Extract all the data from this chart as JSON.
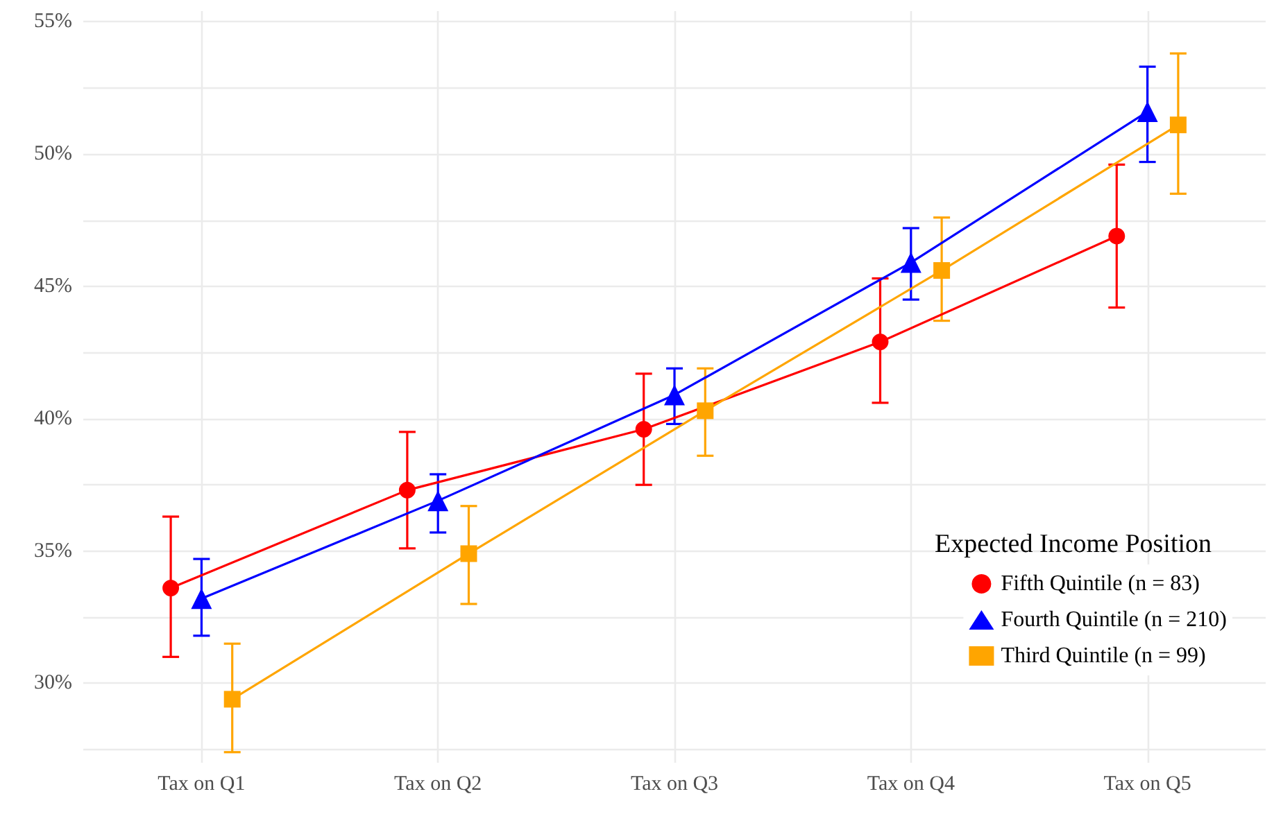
{
  "chart_data": {
    "type": "line",
    "categories": [
      "Tax on Q1",
      "Tax on Q2",
      "Tax on Q3",
      "Tax on Q4",
      "Tax on Q5"
    ],
    "legend_title": "Expected Income Position",
    "legend": "bottom right",
    "grid": true,
    "line_style": "solid",
    "ylim": [
      27,
      55.4
    ],
    "yticks": [
      {
        "value": 27.5,
        "label": null
      },
      {
        "value": 30,
        "label": "30%"
      },
      {
        "value": 32.5,
        "label": null
      },
      {
        "value": 35,
        "label": "35%"
      },
      {
        "value": 37.5,
        "label": null
      },
      {
        "value": 40,
        "label": "40%"
      },
      {
        "value": 42.5,
        "label": null
      },
      {
        "value": 45,
        "label": "45%"
      },
      {
        "value": 47.5,
        "label": null
      },
      {
        "value": 50,
        "label": "50%"
      },
      {
        "value": 52.5,
        "label": null
      },
      {
        "value": 55,
        "label": "55%"
      }
    ],
    "series": [
      {
        "name": "Fifth Quintile (n = 83)",
        "color": "#ff0000",
        "marker": "circle",
        "values": [
          33.6,
          37.3,
          39.6,
          42.9,
          46.9
        ],
        "errors": [
          [
            31.0,
            36.3
          ],
          [
            35.1,
            39.5
          ],
          [
            37.5,
            41.7
          ],
          [
            40.6,
            45.3
          ],
          [
            44.2,
            49.6
          ]
        ]
      },
      {
        "name": "Fourth Quintile (n = 210)",
        "color": "#0000ff",
        "marker": "triangle",
        "values": [
          33.2,
          36.9,
          40.9,
          45.9,
          51.6
        ],
        "errors": [
          [
            31.8,
            34.7
          ],
          [
            35.7,
            37.9
          ],
          [
            39.8,
            41.9
          ],
          [
            44.5,
            47.2
          ],
          [
            49.7,
            53.3
          ]
        ]
      },
      {
        "name": "Third Quintile (n = 99)",
        "color": "#ffa500",
        "marker": "square",
        "values": [
          29.4,
          34.9,
          40.3,
          45.6,
          51.1
        ],
        "errors": [
          [
            27.4,
            31.5
          ],
          [
            33.0,
            36.7
          ],
          [
            38.6,
            41.9
          ],
          [
            43.7,
            47.6
          ],
          [
            48.5,
            53.8
          ]
        ]
      }
    ]
  }
}
